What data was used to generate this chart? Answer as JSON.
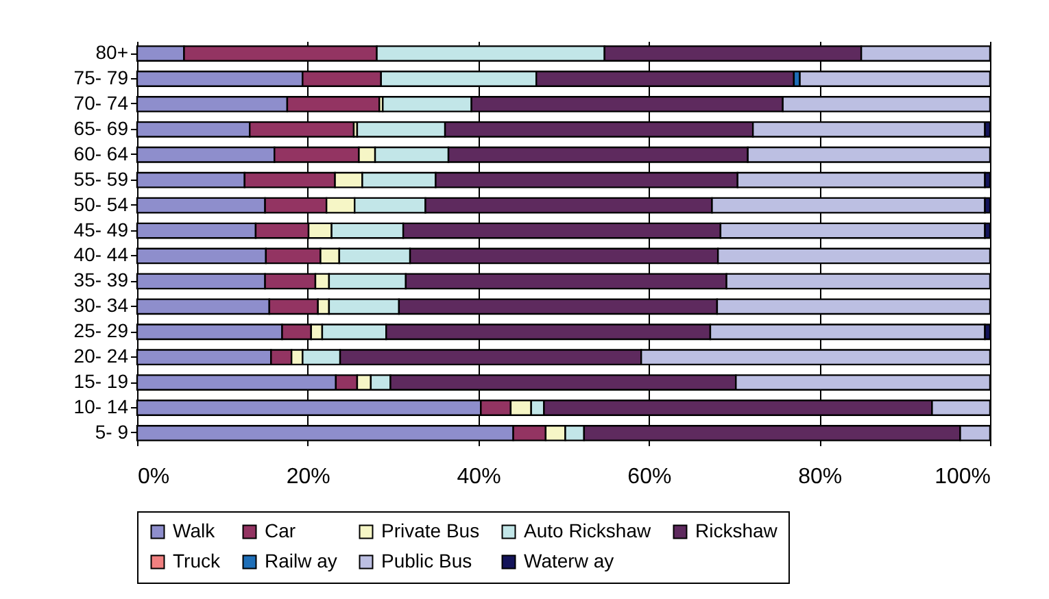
{
  "chart_data": {
    "type": "bar",
    "orientation": "horizontal",
    "stacked": true,
    "categories": [
      "80+",
      "75- 79",
      "70- 74",
      "65- 69",
      "60- 64",
      "55- 59",
      "50- 54",
      "45- 49",
      "40- 44",
      "35- 39",
      "30- 34",
      "25- 29",
      "20- 24",
      "15- 19",
      "10- 14",
      "5- 9"
    ],
    "series": [
      {
        "name": "Walk",
        "color": "#8e8ecc",
        "values": [
          5.5,
          19.4,
          17.6,
          13.2,
          16.1,
          12.6,
          15.0,
          13.9,
          15.1,
          15.0,
          15.5,
          17.0,
          15.7,
          23.3,
          40.3,
          44.1
        ]
      },
      {
        "name": "Car",
        "color": "#933462",
        "values": [
          22.6,
          9.2,
          10.8,
          12.2,
          9.9,
          10.6,
          7.2,
          6.2,
          6.4,
          5.9,
          5.7,
          3.4,
          2.4,
          2.5,
          3.5,
          3.8
        ]
      },
      {
        "name": "Private Bus",
        "color": "#f6f6c6",
        "values": [
          0,
          0,
          0.4,
          0.4,
          1.9,
          3.2,
          3.3,
          2.7,
          2.2,
          1.6,
          1.3,
          1.3,
          1.3,
          1.6,
          2.4,
          2.3
        ]
      },
      {
        "name": "Auto Rickshaw",
        "color": "#c2e6e8",
        "values": [
          26.7,
          18.2,
          10.4,
          10.3,
          8.6,
          8.6,
          8.3,
          8.4,
          8.3,
          9.0,
          8.2,
          7.5,
          4.4,
          2.3,
          1.5,
          2.2
        ]
      },
      {
        "name": "Rickshaw",
        "color": "#5e2a5e",
        "values": [
          30.1,
          30.2,
          36.5,
          36.1,
          35.1,
          35.4,
          33.6,
          37.2,
          36.1,
          37.6,
          37.3,
          38.0,
          35.3,
          40.5,
          45.5,
          44.1
        ]
      },
      {
        "name": "Truck",
        "color": "#f08080",
        "values": [
          0,
          0,
          0,
          0,
          0,
          0,
          0,
          0,
          0,
          0,
          0,
          0,
          0,
          0,
          0,
          0
        ]
      },
      {
        "name": "Railw ay",
        "color": "#1f6fb8",
        "values": [
          0,
          0.7,
          0,
          0,
          0,
          0,
          0,
          0,
          0,
          0,
          0,
          0,
          0,
          0,
          0,
          0
        ]
      },
      {
        "name": "Public Bus",
        "color": "#bcbfe2",
        "values": [
          15.1,
          22.3,
          24.3,
          27.2,
          28.4,
          29.0,
          32.0,
          31.0,
          31.9,
          30.9,
          32.0,
          32.2,
          40.9,
          29.8,
          6.8,
          3.5
        ]
      },
      {
        "name": "Waterw ay",
        "color": "#14145a",
        "values": [
          0,
          0,
          0,
          0.6,
          0,
          0.6,
          0.6,
          0.6,
          0,
          0,
          0,
          0.6,
          0,
          0,
          0,
          0
        ]
      }
    ],
    "xlim": [
      0,
      100
    ],
    "xticks": [
      {
        "value": 0,
        "label": "0%"
      },
      {
        "value": 20,
        "label": "20%"
      },
      {
        "value": 40,
        "label": "40%"
      },
      {
        "value": 60,
        "label": "60%"
      },
      {
        "value": 80,
        "label": "80%"
      },
      {
        "value": 100,
        "label": "100%"
      }
    ],
    "grid": "x",
    "legend": "bottom"
  }
}
